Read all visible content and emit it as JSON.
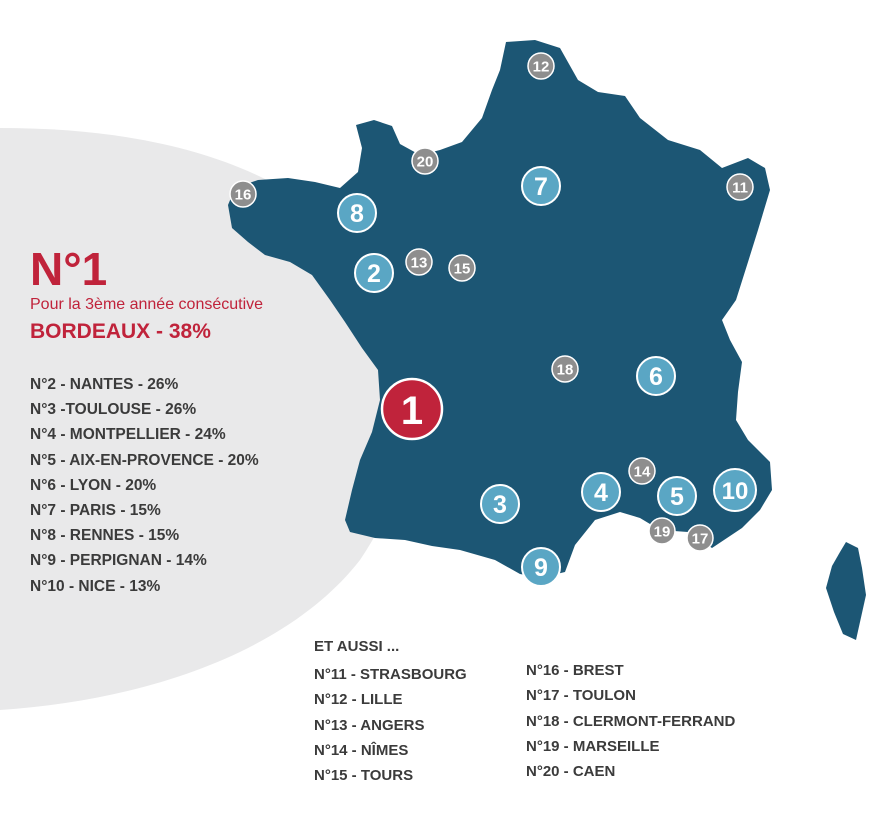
{
  "headline": {
    "rank": "N°1",
    "subtitle": "Pour la 3ème année consécutive",
    "winner": "BORDEAUX - 38%"
  },
  "ranking": [
    "N°2 - NANTES - 26%",
    "N°3 -TOULOUSE - 26%",
    "N°4 - MONTPELLIER - 24%",
    "N°5 - AIX-EN-PROVENCE - 20%",
    "N°6 - LYON - 20%",
    "N°7 - PARIS - 15%",
    "N°8 - RENNES - 15%",
    "N°9 - PERPIGNAN - 14%",
    "N°10 - NICE  - 13%"
  ],
  "also": {
    "title": "ET AUSSI ...",
    "column_1": [
      "N°11 - STRASBOURG",
      "N°12 - LILLE",
      "N°13 - ANGERS",
      "N°14 - NÎMES",
      "N°15 - TOURS"
    ],
    "column_2": [
      "N°16 - BREST",
      "N°17 - TOULON",
      "N°18 - CLERMONT-FERRAND",
      "N°19 - MARSEILLE",
      "N°20 - CAEN"
    ]
  },
  "map_markers": {
    "winner": "1",
    "top_ten": [
      "2",
      "3",
      "4",
      "5",
      "6",
      "7",
      "8",
      "9",
      "10"
    ],
    "others": [
      "11",
      "12",
      "13",
      "14",
      "15",
      "16",
      "17",
      "18",
      "19",
      "20"
    ]
  },
  "colors": {
    "accent_red": "#c0233b",
    "map_fill": "#1c5674",
    "top_ten_marker": "#5aa6c4",
    "other_marker": "#8e8e8e",
    "panel_gray": "#e9e9ea",
    "text_dark": "#3b3b3b"
  }
}
